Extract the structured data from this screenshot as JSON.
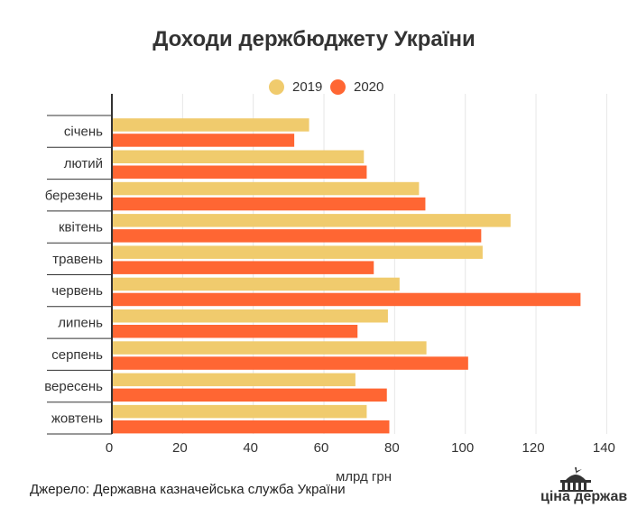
{
  "chart_data": {
    "type": "bar",
    "orientation": "horizontal",
    "title": "Доходи держбюджету України",
    "xlabel": "млрд грн",
    "ylabel": "",
    "categories": [
      "січень",
      "лютий",
      "березень",
      "квітень",
      "травень",
      "червень",
      "липень",
      "серпень",
      "вересень",
      "жовтень"
    ],
    "series": [
      {
        "name": "2019",
        "color": "#f0cb6d",
        "values": [
          55.8,
          71.3,
          86.9,
          112.8,
          104.9,
          81.4,
          78.1,
          89.0,
          68.9,
          72.1
        ]
      },
      {
        "name": "2020",
        "color": "#ff6633",
        "values": [
          51.6,
          72.1,
          88.7,
          104.5,
          74.1,
          132.6,
          69.5,
          100.8,
          77.8,
          78.5
        ]
      }
    ],
    "xlim": [
      0,
      140
    ],
    "xticks": [
      0,
      20,
      40,
      60,
      80,
      100,
      120,
      140
    ],
    "grid": true,
    "legend_position": "top"
  },
  "source": "Джерело: Державна казначейська служба України",
  "logo": {
    "text": "ціна держави",
    "icon": "capitol-building-icon"
  }
}
